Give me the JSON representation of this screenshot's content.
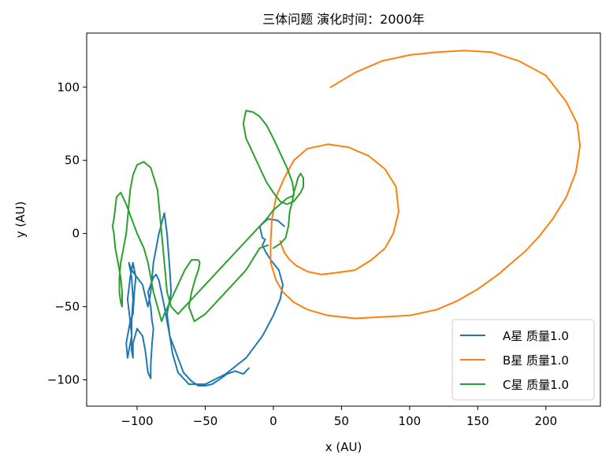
{
  "chart_data": {
    "type": "line",
    "title": "三体问题 演化时间：2000年",
    "xlabel": "x (AU)",
    "ylabel": "y (AU)",
    "xlim": [
      -137,
      240
    ],
    "ylim": [
      -118,
      137
    ],
    "xticks": [
      -100,
      -50,
      0,
      50,
      100,
      150,
      200
    ],
    "xtick_labels": [
      "−100",
      "−50",
      "0",
      "50",
      "100",
      "150",
      "200"
    ],
    "yticks": [
      -100,
      -50,
      0,
      50,
      100
    ],
    "ytick_labels": [
      "−100",
      "−50",
      "0",
      "50",
      "100"
    ],
    "grid": false,
    "legend_position": "lower-right",
    "series": [
      {
        "name": "A星 质量1.0",
        "color": "#1f77b4",
        "x": [
          8,
          3,
          -4,
          -10,
          -8,
          -6,
          -8,
          -6,
          -2,
          4,
          7,
          5,
          0,
          -8,
          -20,
          -35,
          -50,
          -62,
          -70,
          -74,
          -76,
          -78,
          -75,
          -76,
          -78,
          -80,
          -84,
          -88,
          -90,
          -92,
          -94,
          -96,
          -100,
          -104,
          -106,
          -104,
          -103,
          -104,
          -104,
          -106,
          -107,
          -108,
          -106,
          -105,
          -103,
          -102,
          -101,
          -103,
          -105,
          -107,
          -105,
          -104,
          -104,
          -103,
          -103,
          -100,
          -96,
          -94,
          -92,
          -90,
          -90,
          -89,
          -88,
          -89,
          -90,
          -91,
          -92,
          -90,
          -88,
          -86,
          -84,
          -80,
          -76,
          -70,
          -66,
          -60,
          -55,
          -50,
          -45,
          -40,
          -34,
          -28,
          -22,
          -18
        ],
        "y": [
          5,
          9,
          10,
          5,
          -3,
          -4,
          -8,
          -12,
          -18,
          -25,
          -35,
          -45,
          -56,
          -70,
          -85,
          -96,
          -103,
          -103,
          -95,
          -82,
          -70,
          -55,
          -40,
          -25,
          0,
          14,
          0,
          -20,
          -40,
          -50,
          -43,
          -35,
          -30,
          -25,
          -20,
          -30,
          -45,
          -60,
          -70,
          -80,
          -85,
          -75,
          -65,
          -60,
          -55,
          -40,
          -30,
          -20,
          -30,
          -45,
          -60,
          -70,
          -80,
          -85,
          -75,
          -65,
          -70,
          -80,
          -95,
          -99,
          -90,
          -75,
          -65,
          -60,
          -50,
          -45,
          -40,
          -35,
          -30,
          -28,
          -32,
          -50,
          -70,
          -85,
          -95,
          -101,
          -104,
          -104,
          -103,
          -100,
          -96,
          -94,
          -96,
          -92
        ]
      },
      {
        "name": "B星 质量1.0",
        "color": "#ff7f0e",
        "x": [
          42,
          60,
          80,
          100,
          120,
          140,
          160,
          180,
          200,
          215,
          223,
          225,
          222,
          215,
          205,
          195,
          185,
          175,
          165,
          150,
          135,
          120,
          100,
          80,
          60,
          40,
          25,
          15,
          7,
          2,
          -2,
          -2,
          -1,
          2,
          8,
          15,
          25,
          40,
          55,
          70,
          82,
          90,
          92,
          88,
          82,
          72,
          60,
          45,
          35,
          25,
          17,
          12,
          8,
          6,
          5
        ],
        "y": [
          100,
          110,
          118,
          122,
          124,
          125,
          124,
          118,
          108,
          90,
          75,
          60,
          42,
          25,
          10,
          -2,
          -12,
          -20,
          -28,
          -38,
          -46,
          -52,
          -56,
          -57,
          -58,
          -56,
          -52,
          -47,
          -40,
          -32,
          -20,
          -5,
          10,
          25,
          38,
          50,
          58,
          61,
          59,
          53,
          44,
          32,
          15,
          0,
          -10,
          -18,
          -25,
          -27,
          -28,
          -26,
          -22,
          -18,
          -13,
          -8,
          -5
        ]
      },
      {
        "name": "C星 质量1.0",
        "color": "#2ca02c",
        "x": [
          0,
          5,
          9,
          11,
          12,
          14,
          15,
          17,
          18,
          20,
          22,
          22,
          20,
          15,
          10,
          5,
          0,
          -5,
          -10,
          -15,
          -20,
          -22,
          -21,
          -20,
          -15,
          -10,
          -5,
          0,
          5,
          10,
          14,
          15,
          15,
          15,
          10,
          5,
          0,
          -5,
          -10,
          -15,
          -20,
          -25,
          -30,
          -35,
          -40,
          -45,
          -50,
          -55,
          -60,
          -65,
          -70,
          -75,
          -78,
          -80,
          -85,
          -90,
          -95,
          -100,
          -103,
          -105,
          -106,
          -107,
          -108,
          -110,
          -112,
          -113,
          -113,
          -112,
          -111,
          -111,
          -112,
          -114,
          -116,
          -117,
          -118,
          -117,
          -115,
          -112,
          -108,
          -104,
          -100,
          -95,
          -92,
          -90,
          -88,
          -85,
          -82,
          -80,
          -75,
          -70,
          -65,
          -60,
          -55,
          -54,
          -55,
          -57,
          -60,
          -62,
          -58,
          -50,
          -40,
          -30,
          -20,
          -10,
          -4
        ],
        "y": [
          -10,
          -7,
          -3,
          5,
          15,
          22,
          28,
          34,
          38,
          41,
          38,
          32,
          28,
          22,
          20,
          22,
          28,
          35,
          45,
          55,
          65,
          75,
          80,
          84,
          83,
          80,
          74,
          65,
          55,
          45,
          35,
          28,
          26,
          26,
          24,
          20,
          16,
          10,
          5,
          0,
          -5,
          -10,
          -15,
          -20,
          -25,
          -30,
          -35,
          -40,
          -45,
          -50,
          -55,
          -50,
          -40,
          -20,
          30,
          45,
          49,
          47,
          40,
          30,
          20,
          10,
          0,
          -10,
          -20,
          -30,
          -40,
          -47,
          -50,
          -40,
          -30,
          -20,
          -10,
          0,
          5,
          10,
          25,
          28,
          20,
          10,
          0,
          -10,
          -20,
          -30,
          -40,
          -50,
          -60,
          -55,
          -45,
          -35,
          -25,
          -18,
          -18,
          -20,
          -25,
          -30,
          -40,
          -50,
          -60,
          -55,
          -45,
          -35,
          -25,
          -10,
          -8
        ]
      }
    ]
  }
}
